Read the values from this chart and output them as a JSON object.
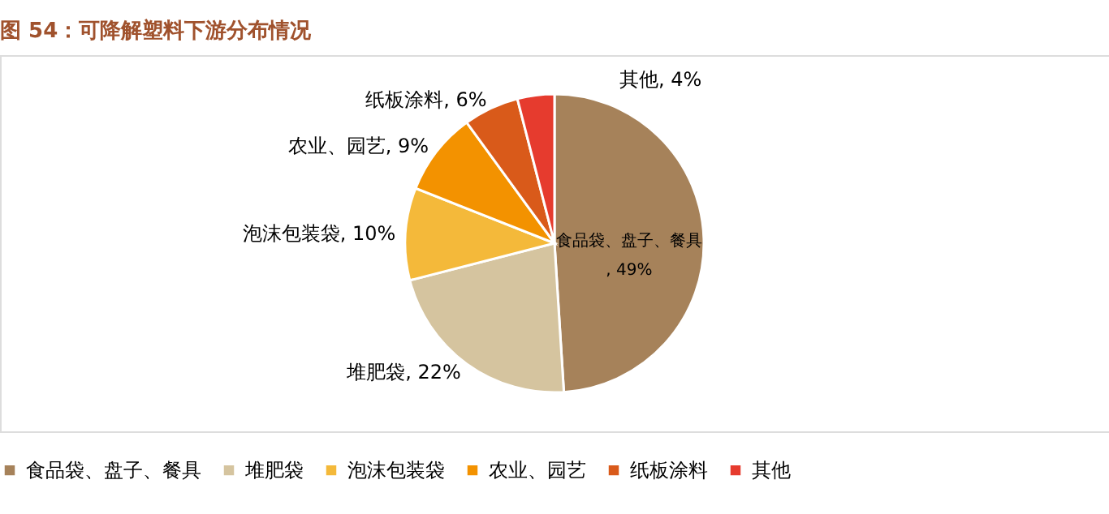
{
  "chart_data": {
    "type": "pie",
    "title": "图 54：可降解塑料下游分布情况",
    "categories": [
      "食品袋、盘子、餐具",
      "堆肥袋",
      "泡沫包装袋",
      "农业、园艺",
      "纸板涂料",
      "其他"
    ],
    "values": [
      49,
      22,
      10,
      9,
      6,
      4
    ],
    "colors": [
      "#a6825a",
      "#d5c49f",
      "#f4b93a",
      "#f39200",
      "#d95a1a",
      "#e63b2e"
    ],
    "value_labels": [
      ", 49%",
      ", 22%",
      ", 10%",
      ", 9%",
      ", 6%",
      ", 4%"
    ],
    "legend": "bottom"
  }
}
